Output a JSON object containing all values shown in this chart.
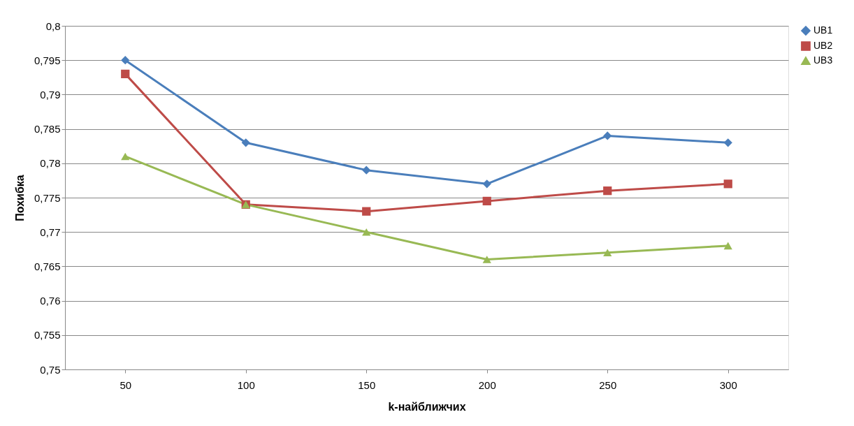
{
  "chart_data": {
    "type": "line",
    "xlabel": "k-найближчих",
    "ylabel": "Похибка",
    "categories": [
      "50",
      "100",
      "150",
      "200",
      "250",
      "300"
    ],
    "series": [
      {
        "name": "UB1",
        "color": "#4a7ebb",
        "marker": "diamond",
        "values": [
          0.795,
          0.783,
          0.779,
          0.777,
          0.784,
          0.783
        ]
      },
      {
        "name": "UB2",
        "color": "#be4b48",
        "marker": "square",
        "values": [
          0.793,
          0.774,
          0.773,
          0.7745,
          0.776,
          0.777
        ]
      },
      {
        "name": "UB3",
        "color": "#98b954",
        "marker": "triangle",
        "values": [
          0.781,
          0.774,
          0.77,
          0.766,
          0.767,
          0.768
        ]
      }
    ],
    "ylim": [
      0.75,
      0.8
    ],
    "yticks": [
      {
        "value": 0.75,
        "label": "0,75"
      },
      {
        "value": 0.755,
        "label": "0,755"
      },
      {
        "value": 0.76,
        "label": "0,76"
      },
      {
        "value": 0.765,
        "label": "0,765"
      },
      {
        "value": 0.77,
        "label": "0,77"
      },
      {
        "value": 0.775,
        "label": "0,775"
      },
      {
        "value": 0.78,
        "label": "0,78"
      },
      {
        "value": 0.785,
        "label": "0,785"
      },
      {
        "value": 0.79,
        "label": "0,79"
      },
      {
        "value": 0.795,
        "label": "0,795"
      },
      {
        "value": 0.8,
        "label": "0,8"
      }
    ],
    "grid": "y",
    "legend": "right",
    "line_style": "solid"
  }
}
